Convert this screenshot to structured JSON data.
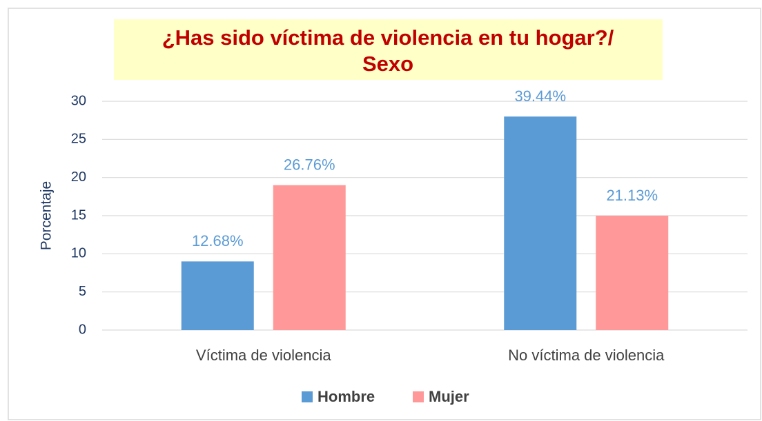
{
  "chart_data": {
    "type": "bar",
    "title": [
      "¿Has sido víctima de violencia en tu hogar?/",
      "Sexo"
    ],
    "y_label": "Porcentaje",
    "categories": [
      "Víctima de violencia",
      "No víctima de violencia"
    ],
    "series": [
      {
        "name": "Hombre",
        "color": "#5b9bd5",
        "values": [
          9,
          28
        ],
        "labels": [
          "12.68%",
          "39.44%"
        ]
      },
      {
        "name": "Mujer",
        "color": "#ff9999",
        "values": [
          19,
          15
        ],
        "labels": [
          "26.76%",
          "21.13%"
        ]
      }
    ],
    "ylim": [
      0,
      30
    ],
    "yticks": [
      0,
      5,
      10,
      15,
      20,
      25,
      30
    ],
    "grid": true,
    "legend": "bottom"
  }
}
